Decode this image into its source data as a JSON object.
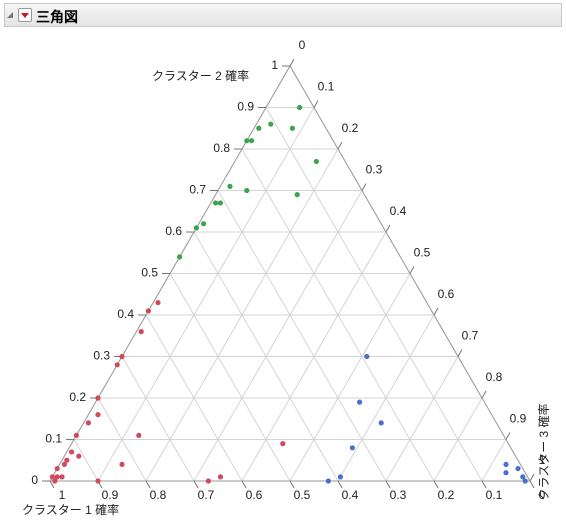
{
  "chart_data": {
    "type": "ternary",
    "title": "三角図",
    "axes": [
      {
        "label": "クラスター 1 確率",
        "ticks": [
          0,
          0.1,
          0.2,
          0.3,
          0.4,
          0.5,
          0.6,
          0.7,
          0.8,
          0.9,
          1
        ]
      },
      {
        "label": "クラスター 2 確率",
        "ticks": [
          0,
          0.1,
          0.2,
          0.3,
          0.4,
          0.5,
          0.6,
          0.7,
          0.8,
          0.9,
          1
        ]
      },
      {
        "label": "クラスター 3 確率",
        "ticks": [
          0,
          0.1,
          0.2,
          0.3,
          0.4,
          0.5,
          0.6,
          0.7,
          0.8,
          0.9,
          1
        ]
      }
    ],
    "grid": true,
    "series": [
      {
        "color": "#3fa34d",
        "c1": [
          0.03,
          0.07,
          0.14,
          0.11,
          0.17,
          0.18,
          0.06,
          0.27,
          0.24,
          0.14,
          0.31,
          0.32,
          0.37,
          0.39,
          0.46
        ],
        "c2": [
          0.9,
          0.85,
          0.85,
          0.86,
          0.82,
          0.82,
          0.77,
          0.71,
          0.7,
          0.69,
          0.67,
          0.67,
          0.62,
          0.61,
          0.54
        ],
        "c3": [
          0.07,
          0.08,
          0.01,
          0.03,
          0.01,
          0,
          0.17,
          0.02,
          0.06,
          0.17,
          0.02,
          0.01,
          0.01,
          0,
          0
        ]
      },
      {
        "color": "#4a6fd1",
        "c1": [
          0.19,
          0.26,
          0.24,
          0.33,
          0.39,
          0.42,
          0.03,
          0.04,
          0.01,
          0.01,
          0.01
        ],
        "c2": [
          0.3,
          0.19,
          0.14,
          0.08,
          0.01,
          0,
          0.04,
          0.02,
          0.03,
          0.01,
          0
        ],
        "c3": [
          0.51,
          0.55,
          0.62,
          0.59,
          0.6,
          0.58,
          0.93,
          0.94,
          0.96,
          0.98,
          0.99
        ]
      },
      {
        "color": "#d04a5c",
        "c1": [
          0.56,
          0.59,
          0.63,
          0.7,
          0.72,
          0.8,
          0.8,
          0.82,
          0.85,
          0.89,
          0.76,
          0.92,
          0.91,
          0.83,
          0.94,
          0.95,
          0.97,
          0.98,
          0.99,
          0.97,
          0.99,
          0.9,
          0.67,
          0.64,
          0.47
        ],
        "c2": [
          0.43,
          0.41,
          0.36,
          0.3,
          0.28,
          0.2,
          0.2,
          0.16,
          0.14,
          0.11,
          0.11,
          0.07,
          0.06,
          0.04,
          0.05,
          0.04,
          0.03,
          0.01,
          0.01,
          0.01,
          0,
          0,
          0,
          0.01,
          0.09
        ],
        "c3": [
          0.01,
          0,
          0.01,
          0,
          0,
          0,
          0,
          0.02,
          0.01,
          0,
          0.13,
          0.01,
          0.03,
          0.13,
          0.01,
          0.01,
          0,
          0.01,
          0,
          0.02,
          0.01,
          0.1,
          0.33,
          0.35,
          0.44
        ]
      }
    ]
  }
}
